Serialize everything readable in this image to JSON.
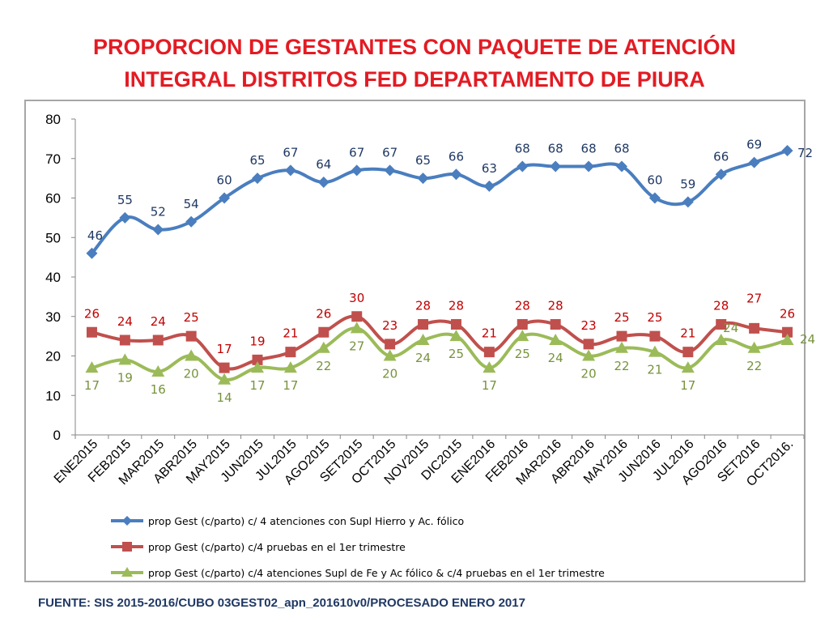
{
  "title": {
    "line1": "PROPORCION DE GESTANTES CON PAQUETE DE ATENCIÓN",
    "line2": "INTEGRAL  DISTRITOS FED DEPARTAMENTO DE PIURA"
  },
  "source": "FUENTE: SIS 2015-2016/CUBO 03GEST02_apn_201610v0/PROCESADO ENERO 2017",
  "chart_data": {
    "type": "line",
    "title": "PROPORCION DE GESTANTES CON PAQUETE DE ATENCIÓN INTEGRAL  DISTRITOS FED DEPARTAMENTO DE PIURA",
    "xlabel": "",
    "ylabel": "",
    "ylim": [
      0,
      80
    ],
    "yticks": [
      0,
      10,
      20,
      30,
      40,
      50,
      60,
      70,
      80
    ],
    "grid": false,
    "legend_position": "bottom",
    "categories": [
      "ENE2015",
      "FEB2015",
      "MAR2015",
      "ABR2015",
      "MAY2015",
      "JUN2015",
      "JUL2015",
      "AGO2015",
      "SET2015",
      "OCT2015",
      "NOV2015",
      "DIC2015",
      "ENE2016",
      "FEB2016",
      "MAR2016",
      "ABR2016",
      "MAY2016",
      "JUN2016",
      "JUL2016",
      "AGO2016",
      "SET2016",
      "OCT2016."
    ],
    "series": [
      {
        "name": "prop Gest (c/parto) c/ 4 atenciones con Supl Hierro y Ac. fólico",
        "color": "#4a7ebf",
        "label_color": "#1f3864",
        "marker": "diamond",
        "values": [
          46,
          55,
          52,
          54,
          60,
          65,
          67,
          64,
          67,
          67,
          65,
          66,
          63,
          68,
          68,
          68,
          68,
          60,
          59,
          66,
          69,
          72
        ]
      },
      {
        "name": "prop Gest (c/parto) c/4 pruebas en el 1er trimestre",
        "color": "#c0504d",
        "label_color": "#c00000",
        "marker": "square",
        "values": [
          26,
          24,
          24,
          25,
          17,
          19,
          21,
          26,
          30,
          23,
          28,
          28,
          21,
          28,
          28,
          23,
          25,
          25,
          21,
          28,
          27,
          26
        ]
      },
      {
        "name": "prop Gest (c/parto) c/4 atenciones Supl de Fe y Ac fólico & c/4 pruebas en el 1er trimestre",
        "color": "#9bbb59",
        "label_color": "#77933c",
        "marker": "triangle",
        "values": [
          17,
          19,
          16,
          20,
          14,
          17,
          17,
          22,
          27,
          20,
          24,
          25,
          17,
          25,
          24,
          20,
          22,
          21,
          17,
          24,
          22,
          24
        ]
      }
    ]
  }
}
